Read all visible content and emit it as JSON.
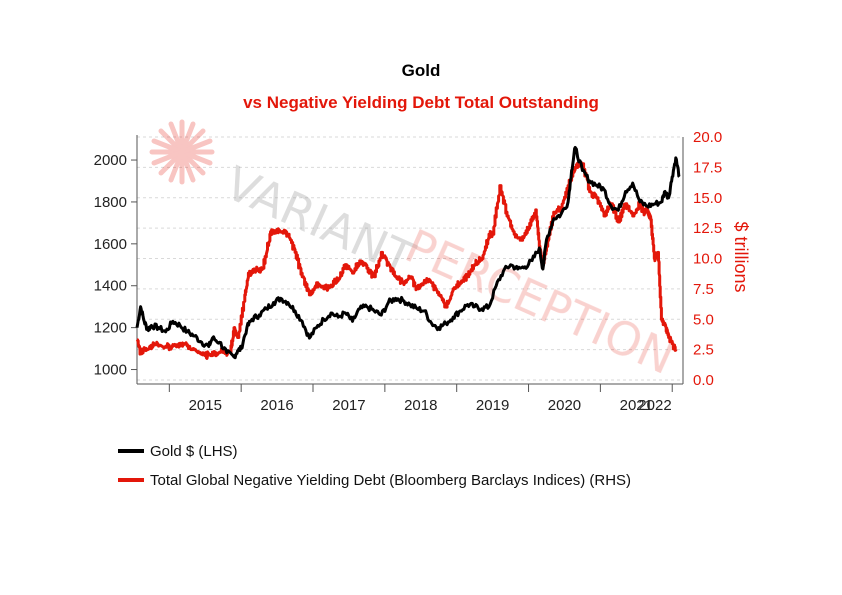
{
  "colors": {
    "gold": "#000000",
    "debt": "#e3170a",
    "grid": "#d9d9d9",
    "watermark_gray": "#9a9a9a",
    "watermark_red": "#e3170a"
  },
  "watermark": {
    "word1": "VARIANT",
    "word2": "PERCEPTION"
  },
  "chart_data": {
    "type": "line",
    "title": "Gold",
    "subtitle": "vs Negative Yielding Debt Total Outstanding",
    "x_ticks": [
      "2015",
      "2016",
      "2017",
      "2018",
      "2019",
      "2020",
      "2021",
      "2022"
    ],
    "x_range": [
      2014.55,
      2022.15
    ],
    "y_left": {
      "label": "",
      "ticks": [
        1000,
        1200,
        1400,
        1600,
        1800,
        2000
      ],
      "range": [
        950,
        2110
      ]
    },
    "y_right": {
      "label": "$ trillions",
      "ticks": [
        "0.0",
        "2.5",
        "5.0",
        "7.5",
        "10.0",
        "12.5",
        "15.0",
        "17.5",
        "20.0"
      ],
      "range": [
        0,
        20
      ]
    },
    "grid": true,
    "legend_position": "bottom-left",
    "series": [
      {
        "name": "Gold $ (LHS)",
        "axis": "left",
        "color": "#000000",
        "x": [
          2014.55,
          2014.6,
          2014.65,
          2014.7,
          2014.75,
          2014.85,
          2014.95,
          2015.05,
          2015.15,
          2015.25,
          2015.35,
          2015.45,
          2015.55,
          2015.6,
          2015.7,
          2015.8,
          2015.9,
          2015.95,
          2016.0,
          2016.08,
          2016.15,
          2016.25,
          2016.35,
          2016.45,
          2016.55,
          2016.65,
          2016.75,
          2016.85,
          2016.95,
          2017.05,
          2017.15,
          2017.25,
          2017.35,
          2017.45,
          2017.55,
          2017.65,
          2017.75,
          2017.85,
          2017.95,
          2018.05,
          2018.15,
          2018.25,
          2018.35,
          2018.45,
          2018.55,
          2018.65,
          2018.75,
          2018.85,
          2018.95,
          2019.05,
          2019.15,
          2019.25,
          2019.35,
          2019.45,
          2019.55,
          2019.65,
          2019.75,
          2019.85,
          2019.95,
          2020.05,
          2020.15,
          2020.2,
          2020.25,
          2020.35,
          2020.45,
          2020.55,
          2020.6,
          2020.65,
          2020.75,
          2020.85,
          2020.95,
          2021.05,
          2021.15,
          2021.25,
          2021.35,
          2021.45,
          2021.55,
          2021.65,
          2021.75,
          2021.85,
          2021.9,
          2021.95,
          2022.0,
          2022.05,
          2022.1
        ],
        "values": [
          1200,
          1300,
          1230,
          1190,
          1210,
          1200,
          1180,
          1230,
          1210,
          1180,
          1160,
          1130,
          1110,
          1150,
          1130,
          1080,
          1060,
          1090,
          1100,
          1200,
          1240,
          1260,
          1290,
          1320,
          1340,
          1320,
          1280,
          1230,
          1150,
          1200,
          1240,
          1270,
          1250,
          1270,
          1230,
          1290,
          1300,
          1280,
          1260,
          1320,
          1340,
          1330,
          1310,
          1290,
          1280,
          1220,
          1200,
          1220,
          1250,
          1280,
          1310,
          1300,
          1290,
          1300,
          1400,
          1470,
          1500,
          1480,
          1490,
          1520,
          1580,
          1480,
          1620,
          1720,
          1740,
          1800,
          1950,
          2060,
          1950,
          1900,
          1880,
          1860,
          1780,
          1760,
          1850,
          1890,
          1800,
          1780,
          1790,
          1800,
          1850,
          1820,
          1920,
          2010,
          1920
        ]
      },
      {
        "name": "Total Global Negative Yielding Debt (Bloomberg Barclays Indices) (RHS)",
        "axis": "right",
        "color": "#e3170a",
        "x": [
          2014.55,
          2014.6,
          2014.65,
          2014.8,
          2014.95,
          2015.1,
          2015.2,
          2015.3,
          2015.5,
          2015.55,
          2015.7,
          2015.85,
          2015.9,
          2015.95,
          2016.05,
          2016.1,
          2016.2,
          2016.3,
          2016.4,
          2016.45,
          2016.55,
          2016.65,
          2016.75,
          2016.85,
          2016.95,
          2017.05,
          2017.15,
          2017.25,
          2017.35,
          2017.45,
          2017.55,
          2017.65,
          2017.75,
          2017.85,
          2017.95,
          2018.05,
          2018.15,
          2018.25,
          2018.35,
          2018.45,
          2018.55,
          2018.65,
          2018.75,
          2018.85,
          2018.95,
          2019.05,
          2019.15,
          2019.25,
          2019.35,
          2019.45,
          2019.5,
          2019.6,
          2019.7,
          2019.8,
          2019.9,
          2020.0,
          2020.1,
          2020.15,
          2020.2,
          2020.25,
          2020.35,
          2020.45,
          2020.55,
          2020.65,
          2020.75,
          2020.85,
          2020.95,
          2021.05,
          2021.15,
          2021.25,
          2021.35,
          2021.45,
          2021.55,
          2021.6,
          2021.65,
          2021.7,
          2021.75,
          2021.8,
          2021.85,
          2021.9,
          2021.95,
          2022.0,
          2022.05
        ],
        "values": [
          3.3,
          2.2,
          2.6,
          2.9,
          2.7,
          2.9,
          3.0,
          2.5,
          2.0,
          2.1,
          2.3,
          2.3,
          4.3,
          3.5,
          7.0,
          8.8,
          9.0,
          9.2,
          12.0,
          12.3,
          12.2,
          12.0,
          10.5,
          8.5,
          7.0,
          8.0,
          7.5,
          7.8,
          8.3,
          9.5,
          8.8,
          9.8,
          9.2,
          8.5,
          10.5,
          9.5,
          8.5,
          8.0,
          8.5,
          7.5,
          8.2,
          8.0,
          7.0,
          6.0,
          7.5,
          8.0,
          8.5,
          9.5,
          10.0,
          12.0,
          12.0,
          16.0,
          13.5,
          12.0,
          11.5,
          12.5,
          14.0,
          11.0,
          9.5,
          11.0,
          13.8,
          14.2,
          16.0,
          17.5,
          17.8,
          15.5,
          15.0,
          13.5,
          14.5,
          13.0,
          14.5,
          13.5,
          14.5,
          13.8,
          14.0,
          13.2,
          10.0,
          10.5,
          5.0,
          4.5,
          3.5,
          3.0,
          2.5
        ]
      }
    ]
  }
}
